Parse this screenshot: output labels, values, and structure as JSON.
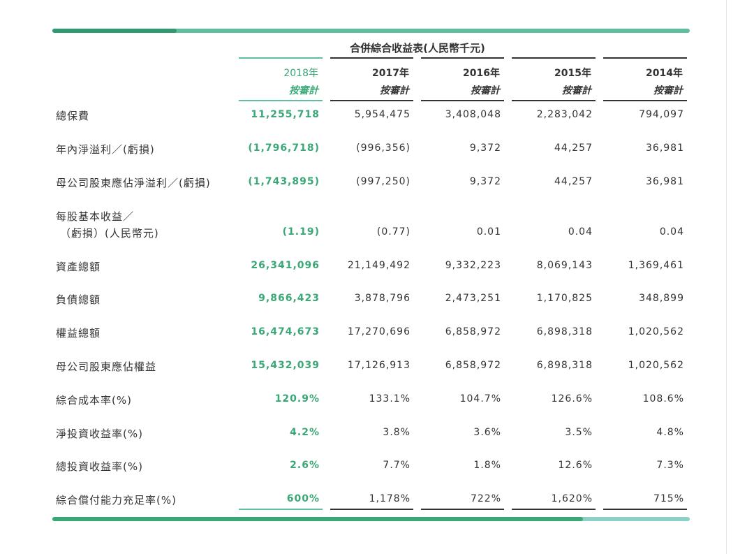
{
  "header": {
    "title": "合併綜合收益表(人民幣千元)"
  },
  "table": {
    "columns": [
      {
        "year": "2018年",
        "note": "按審計"
      },
      {
        "year": "2017年",
        "note": "按審計"
      },
      {
        "year": "2016年",
        "note": "按審計"
      },
      {
        "year": "2015年",
        "note": "按審計"
      },
      {
        "year": "2014年",
        "note": "按審計"
      }
    ],
    "rows": [
      {
        "label": [
          "總保費"
        ],
        "values": [
          "11,255,718",
          "5,954,475",
          "3,408,048",
          "2,283,042",
          "794,097"
        ]
      },
      {
        "label": [
          "年內淨溢利／(虧損)"
        ],
        "values": [
          "(1,796,718)",
          "(996,356)",
          "9,372",
          "44,257",
          "36,981"
        ]
      },
      {
        "label": [
          "母公司股東應佔淨溢利／(虧損)"
        ],
        "values": [
          "(1,743,895)",
          "(997,250)",
          "9,372",
          "44,257",
          "36,981"
        ]
      },
      {
        "label": [
          "每股基本收益／",
          "（虧損）(人民幣元)"
        ],
        "values": [
          "(1.19)",
          "(0.77)",
          "0.01",
          "0.04",
          "0.04"
        ]
      },
      {
        "label": [
          "資產總額"
        ],
        "values": [
          "26,341,096",
          "21,149,492",
          "9,332,223",
          "8,069,143",
          "1,369,461"
        ]
      },
      {
        "label": [
          "負債總額"
        ],
        "values": [
          "9,866,423",
          "3,878,796",
          "2,473,251",
          "1,170,825",
          "348,899"
        ]
      },
      {
        "label": [
          "權益總額"
        ],
        "values": [
          "16,474,673",
          "17,270,696",
          "6,858,972",
          "6,898,318",
          "1,020,562"
        ]
      },
      {
        "label": [
          "母公司股東應佔權益"
        ],
        "values": [
          "15,432,039",
          "17,126,913",
          "6,858,972",
          "6,898,318",
          "1,020,562"
        ]
      },
      {
        "label": [
          "綜合成本率(%)"
        ],
        "values": [
          "120.9%",
          "133.1%",
          "104.7%",
          "126.6%",
          "108.6%"
        ]
      },
      {
        "label": [
          "淨投資收益率(%)"
        ],
        "values": [
          "4.2%",
          "3.8%",
          "3.6%",
          "3.5%",
          "4.8%"
        ]
      },
      {
        "label": [
          "總投資收益率(%)"
        ],
        "values": [
          "2.6%",
          "7.7%",
          "1.8%",
          "12.6%",
          "7.3%"
        ]
      },
      {
        "label": [
          "綜合償付能力充足率(%)"
        ],
        "values": [
          "600%",
          "1,178%",
          "722%",
          "1,620%",
          "715%"
        ]
      }
    ]
  }
}
